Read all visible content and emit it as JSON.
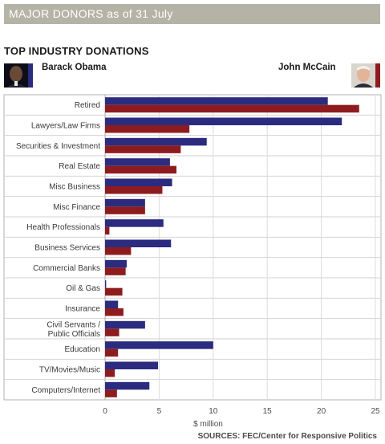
{
  "header": {
    "title": "MAJOR DONORS as of 31 July"
  },
  "section_title": "TOP INDUSTRY DONATIONS",
  "candidates": {
    "obama": {
      "name": "Barack Obama"
    },
    "mccain": {
      "name": "John McCain"
    }
  },
  "colors": {
    "obama": "#2b2c7f",
    "mccain": "#8e1c1f",
    "header": "#b5b3a6"
  },
  "chart_data": {
    "type": "bar",
    "orientation": "horizontal",
    "categories": [
      "Retired",
      "Lawyers/Law Firms",
      "Securities & Investment",
      "Real Estate",
      "Misc Business",
      "Misc Finance",
      "Health Professionals",
      "Business Services",
      "Commercial Banks",
      "Oil & Gas",
      "Insurance",
      "Civil Servants / Public Officials",
      "Education",
      "TV/Movies/Music",
      "Computers/Internet"
    ],
    "series": [
      {
        "name": "Barack Obama",
        "values": [
          20.6,
          21.9,
          9.4,
          6.0,
          6.2,
          3.7,
          5.4,
          6.1,
          2.0,
          0.1,
          1.2,
          3.7,
          10.0,
          4.9,
          4.1
        ]
      },
      {
        "name": "John McCain",
        "values": [
          23.5,
          7.8,
          7.0,
          6.6,
          5.3,
          3.7,
          0.4,
          2.4,
          1.9,
          1.6,
          1.7,
          1.3,
          1.2,
          0.9,
          1.1
        ]
      }
    ],
    "xlabel": "$ million",
    "xlim": [
      0,
      25
    ],
    "xticks": [
      0,
      5,
      10,
      15,
      20,
      25
    ],
    "grid": true,
    "source": "SOURCES: FEC/Center for Responsive Politics"
  }
}
